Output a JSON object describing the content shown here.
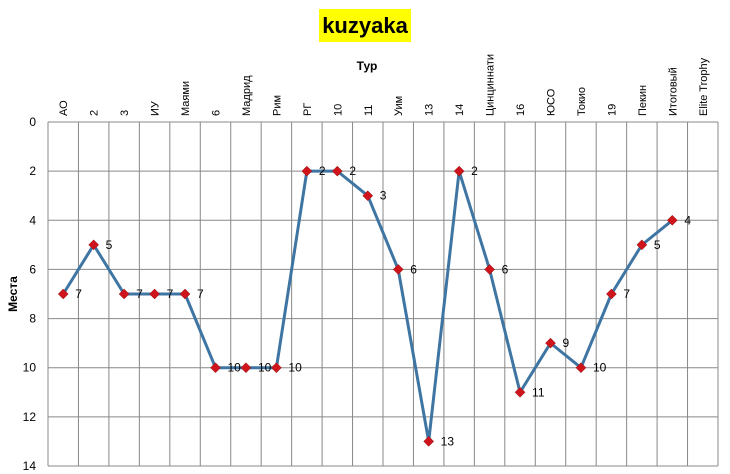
{
  "chart_data": {
    "type": "line",
    "title": "kuzyaka",
    "xlabel": "Тур",
    "ylabel": "Места",
    "categories": [
      "АО",
      "2",
      "3",
      "ИУ",
      "Маями",
      "6",
      "Мадрид",
      "Рим",
      "РГ",
      "10",
      "11",
      "Уим",
      "13",
      "14",
      "Цинциннати",
      "16",
      "ЮСО",
      "Токио",
      "19",
      "Пекин",
      "Итоговый",
      "Elite Trophy"
    ],
    "series": [
      {
        "values": [
          7,
          5,
          7,
          7,
          7,
          10,
          10,
          10,
          2,
          2,
          3,
          6,
          13,
          2,
          6,
          11,
          9,
          10,
          7,
          5,
          4,
          null
        ]
      }
    ],
    "ylim": [
      0,
      14
    ],
    "y_ticks": [
      0,
      2,
      4,
      6,
      8,
      10,
      12,
      14
    ],
    "y_reversed": true,
    "x_axis_position": "top",
    "grid": true,
    "line_color": "#3f75a2",
    "marker_color": "#d0141b",
    "title_background": "#ffff00"
  }
}
